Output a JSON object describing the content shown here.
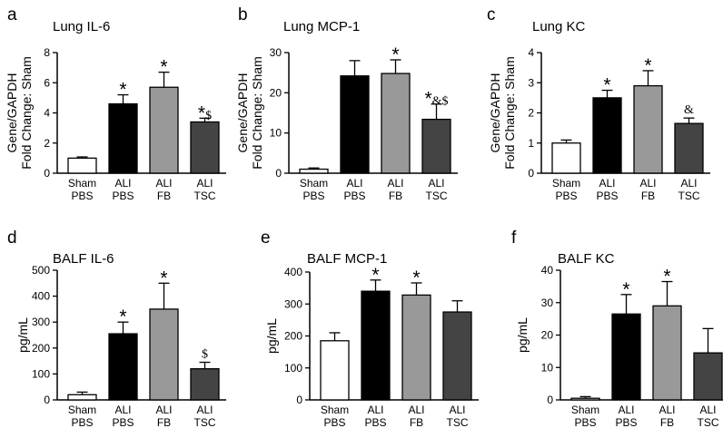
{
  "chart_data": [
    {
      "panel": "a",
      "type": "bar",
      "title": "Lung IL-6",
      "ylabel": [
        "Gene/GAPDH",
        "Fold Change: Sham"
      ],
      "ylim": [
        0,
        8
      ],
      "yticks": [
        0,
        2,
        4,
        6,
        8
      ],
      "categories": [
        [
          "Sham",
          "PBS"
        ],
        [
          "ALI",
          "PBS"
        ],
        [
          "ALI",
          "FB"
        ],
        [
          "ALI",
          "TSC"
        ]
      ],
      "values": [
        1.0,
        4.6,
        5.7,
        3.4
      ],
      "errors": [
        0.08,
        0.6,
        1.0,
        0.25
      ],
      "annotations": [
        "",
        "*",
        "*",
        "*$"
      ],
      "colors": [
        "#ffffff",
        "#000000",
        "#999999",
        "#444444"
      ]
    },
    {
      "panel": "b",
      "type": "bar",
      "title": "Lung MCP-1",
      "ylabel": [
        "Gene/GAPDH",
        "Fold Change: Sham"
      ],
      "ylim": [
        0,
        30
      ],
      "yticks": [
        0,
        10,
        20,
        30
      ],
      "categories": [
        [
          "Sham",
          "PBS"
        ],
        [
          "ALI",
          "PBS"
        ],
        [
          "ALI",
          "FB"
        ],
        [
          "ALI",
          "TSC"
        ]
      ],
      "values": [
        1.0,
        24.2,
        24.8,
        13.4
      ],
      "errors": [
        0.3,
        3.8,
        3.4,
        3.8
      ],
      "annotations": [
        "",
        "",
        "*",
        "*&$"
      ],
      "colors": [
        "#ffffff",
        "#000000",
        "#999999",
        "#444444"
      ]
    },
    {
      "panel": "c",
      "type": "bar",
      "title": "Lung KC",
      "ylabel": [
        "Gene/GAPDH",
        "Fold Change: Sham"
      ],
      "ylim": [
        0,
        4
      ],
      "yticks": [
        0,
        1,
        2,
        3,
        4
      ],
      "categories": [
        [
          "Sham",
          "PBS"
        ],
        [
          "ALI",
          "PBS"
        ],
        [
          "ALI",
          "FB"
        ],
        [
          "ALI",
          "TSC"
        ]
      ],
      "values": [
        1.0,
        2.5,
        2.9,
        1.65
      ],
      "errors": [
        0.1,
        0.25,
        0.5,
        0.18
      ],
      "annotations": [
        "",
        "*",
        "*",
        "&"
      ],
      "colors": [
        "#ffffff",
        "#000000",
        "#999999",
        "#444444"
      ]
    },
    {
      "panel": "d",
      "type": "bar",
      "title": "BALF IL-6",
      "ylabel": [
        "pg/mL"
      ],
      "ylim": [
        0,
        500
      ],
      "yticks": [
        0,
        100,
        200,
        300,
        400,
        500
      ],
      "categories": [
        [
          "Sham",
          "PBS"
        ],
        [
          "ALI",
          "PBS"
        ],
        [
          "ALI",
          "FB"
        ],
        [
          "ALI",
          "TSC"
        ]
      ],
      "values": [
        20,
        255,
        350,
        120
      ],
      "errors": [
        10,
        45,
        100,
        25
      ],
      "annotations": [
        "",
        "*",
        "*",
        "$"
      ],
      "colors": [
        "#ffffff",
        "#000000",
        "#999999",
        "#444444"
      ]
    },
    {
      "panel": "e",
      "type": "bar",
      "title": "BALF MCP-1",
      "ylabel": [
        "pg/mL"
      ],
      "ylim": [
        0,
        400
      ],
      "yticks": [
        0,
        100,
        200,
        300,
        400
      ],
      "categories": [
        [
          "Sham",
          "PBS"
        ],
        [
          "ALI",
          "PBS"
        ],
        [
          "ALI",
          "FB"
        ],
        [
          "ALI",
          "TSC"
        ]
      ],
      "values": [
        185,
        340,
        328,
        275
      ],
      "errors": [
        25,
        35,
        38,
        35
      ],
      "annotations": [
        "",
        "*",
        "*",
        ""
      ],
      "colors": [
        "#ffffff",
        "#000000",
        "#999999",
        "#444444"
      ]
    },
    {
      "panel": "f",
      "type": "bar",
      "title": "BALF KC",
      "ylabel": [
        "pg/mL"
      ],
      "ylim": [
        0,
        40
      ],
      "yticks": [
        0,
        10,
        20,
        30,
        40
      ],
      "categories": [
        [
          "Sham",
          "PBS"
        ],
        [
          "ALI",
          "PBS"
        ],
        [
          "ALI",
          "FB"
        ],
        [
          "ALI",
          "TSC"
        ]
      ],
      "values": [
        0.5,
        26.5,
        29,
        14.5
      ],
      "errors": [
        0.5,
        6,
        7.5,
        7.5
      ],
      "annotations": [
        "",
        "*",
        "*",
        ""
      ],
      "colors": [
        "#ffffff",
        "#000000",
        "#999999",
        "#444444"
      ]
    }
  ]
}
